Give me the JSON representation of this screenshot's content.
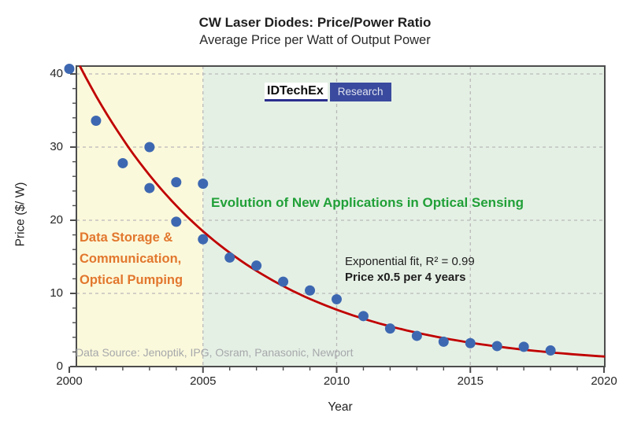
{
  "logo": {
    "brand": "IDTechEx",
    "tag": "Research"
  },
  "annotations": {
    "left_region": "Data Storage &\nCommunication,\nOptical Pumping",
    "right_region": "Evolution of New Applications in Optical Sensing",
    "fit_label": "Exponential fit, R² = 0.99",
    "fit_rate": "Price x0.5 per 4 years",
    "data_source": "Data Source: Jenoptik, IPG, Osram, Panasonic, Newport"
  },
  "chart_data": {
    "type": "scatter",
    "title": "CW Laser Diodes: Price/Power Ratio",
    "subtitle": "Average Price per Watt of Output Power",
    "xlabel": "Year",
    "ylabel": "Price ($/ W)",
    "xlim": [
      2000,
      2020
    ],
    "ylim": [
      0,
      41
    ],
    "x_major_ticks": [
      2000,
      2005,
      2010,
      2015,
      2020
    ],
    "y_major_ticks": [
      0,
      10,
      20,
      30,
      40
    ],
    "x_minor_step": 1,
    "y_minor_step": 2,
    "grid": {
      "x_dashed": [
        2005,
        2010,
        2015
      ],
      "y_dashed": [
        10,
        20,
        30,
        40
      ]
    },
    "points": [
      [
        2000,
        40.7
      ],
      [
        2001,
        33.6
      ],
      [
        2002,
        27.8
      ],
      [
        2003,
        30.0
      ],
      [
        2003,
        24.4
      ],
      [
        2004,
        25.2
      ],
      [
        2004,
        19.8
      ],
      [
        2005,
        25.0
      ],
      [
        2005,
        17.4
      ],
      [
        2006,
        14.9
      ],
      [
        2007,
        13.8
      ],
      [
        2008,
        11.6
      ],
      [
        2009,
        10.4
      ],
      [
        2010,
        9.2
      ],
      [
        2011,
        6.9
      ],
      [
        2012,
        5.2
      ],
      [
        2013,
        4.2
      ],
      [
        2014,
        3.4
      ],
      [
        2015,
        3.2
      ],
      [
        2016,
        2.8
      ],
      [
        2017,
        2.7
      ],
      [
        2018,
        2.2
      ]
    ],
    "fit": {
      "type": "exponential",
      "r_squared": 0.99,
      "value_at_2000": 44,
      "halving_period_years": 4
    },
    "regions": [
      {
        "label": "Data Storage & Communication, Optical Pumping",
        "from": 2000,
        "to": 2005,
        "fill": "#FBF9DB"
      },
      {
        "label": "Evolution of New Applications in Optical Sensing",
        "from": 2005,
        "to": 2020,
        "fill": "#E5F0E5"
      }
    ],
    "colors": {
      "point": "#3D68B1",
      "fit_line": "#C00000",
      "grid": "#B9B9B9",
      "axis": "#4D4D4D",
      "left_region_text": "#E2772E",
      "right_region_text": "#21A038",
      "source_text": "#A6A8AB",
      "logo_blue": "#3A4A9E",
      "logo_underline": "#2B2F8E"
    }
  }
}
